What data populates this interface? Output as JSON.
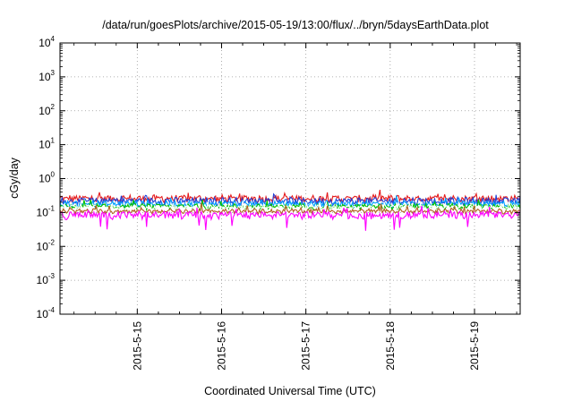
{
  "chart_data": {
    "type": "line",
    "title": "/data/run/goesPlots/archive/2015-05-19/13:00/flux/../bryn/5daysEarthData.plot",
    "xlabel": "Coordinated Universal Time (UTC)",
    "ylabel": "cGy/day",
    "yscale": "log",
    "ylim_exponents": [
      -4,
      4
    ],
    "y_ticks": [
      {
        "base": "10",
        "exp": "-4"
      },
      {
        "base": "10",
        "exp": "-3"
      },
      {
        "base": "10",
        "exp": "-2"
      },
      {
        "base": "10",
        "exp": "-1"
      },
      {
        "base": "10",
        "exp": "0"
      },
      {
        "base": "10",
        "exp": "1"
      },
      {
        "base": "10",
        "exp": "2"
      },
      {
        "base": "10",
        "exp": "3"
      },
      {
        "base": "10",
        "exp": "4"
      }
    ],
    "x_range": [
      "2015-05-14 02:00",
      "2015-05-19 13:00"
    ],
    "x_ticks": [
      "2015-5-15",
      "2015-5-16",
      "2015-5-17",
      "2015-5-18",
      "2015-5-19"
    ],
    "x_tick_dates": [
      "2015-05-15",
      "2015-05-16",
      "2015-05-17",
      "2015-05-18",
      "2015-05-19"
    ],
    "grid": true,
    "series": [
      {
        "color": "#e41a1c",
        "level": 0.26,
        "spread": 0.45
      },
      {
        "color": "#1f3fd6",
        "level": 0.22,
        "spread": 0.45
      },
      {
        "color": "#00a0ff",
        "level": 0.18,
        "spread": 0.35
      },
      {
        "color": "#00c000",
        "level": 0.15,
        "spread": 0.3
      },
      {
        "color": "#ffffff",
        "level": 0.14,
        "spread": 0.25
      },
      {
        "color": "#b06020",
        "level": 0.11,
        "spread": 0.25
      },
      {
        "color": "#ff00ff",
        "level": 0.085,
        "spread": 0.45
      }
    ]
  }
}
